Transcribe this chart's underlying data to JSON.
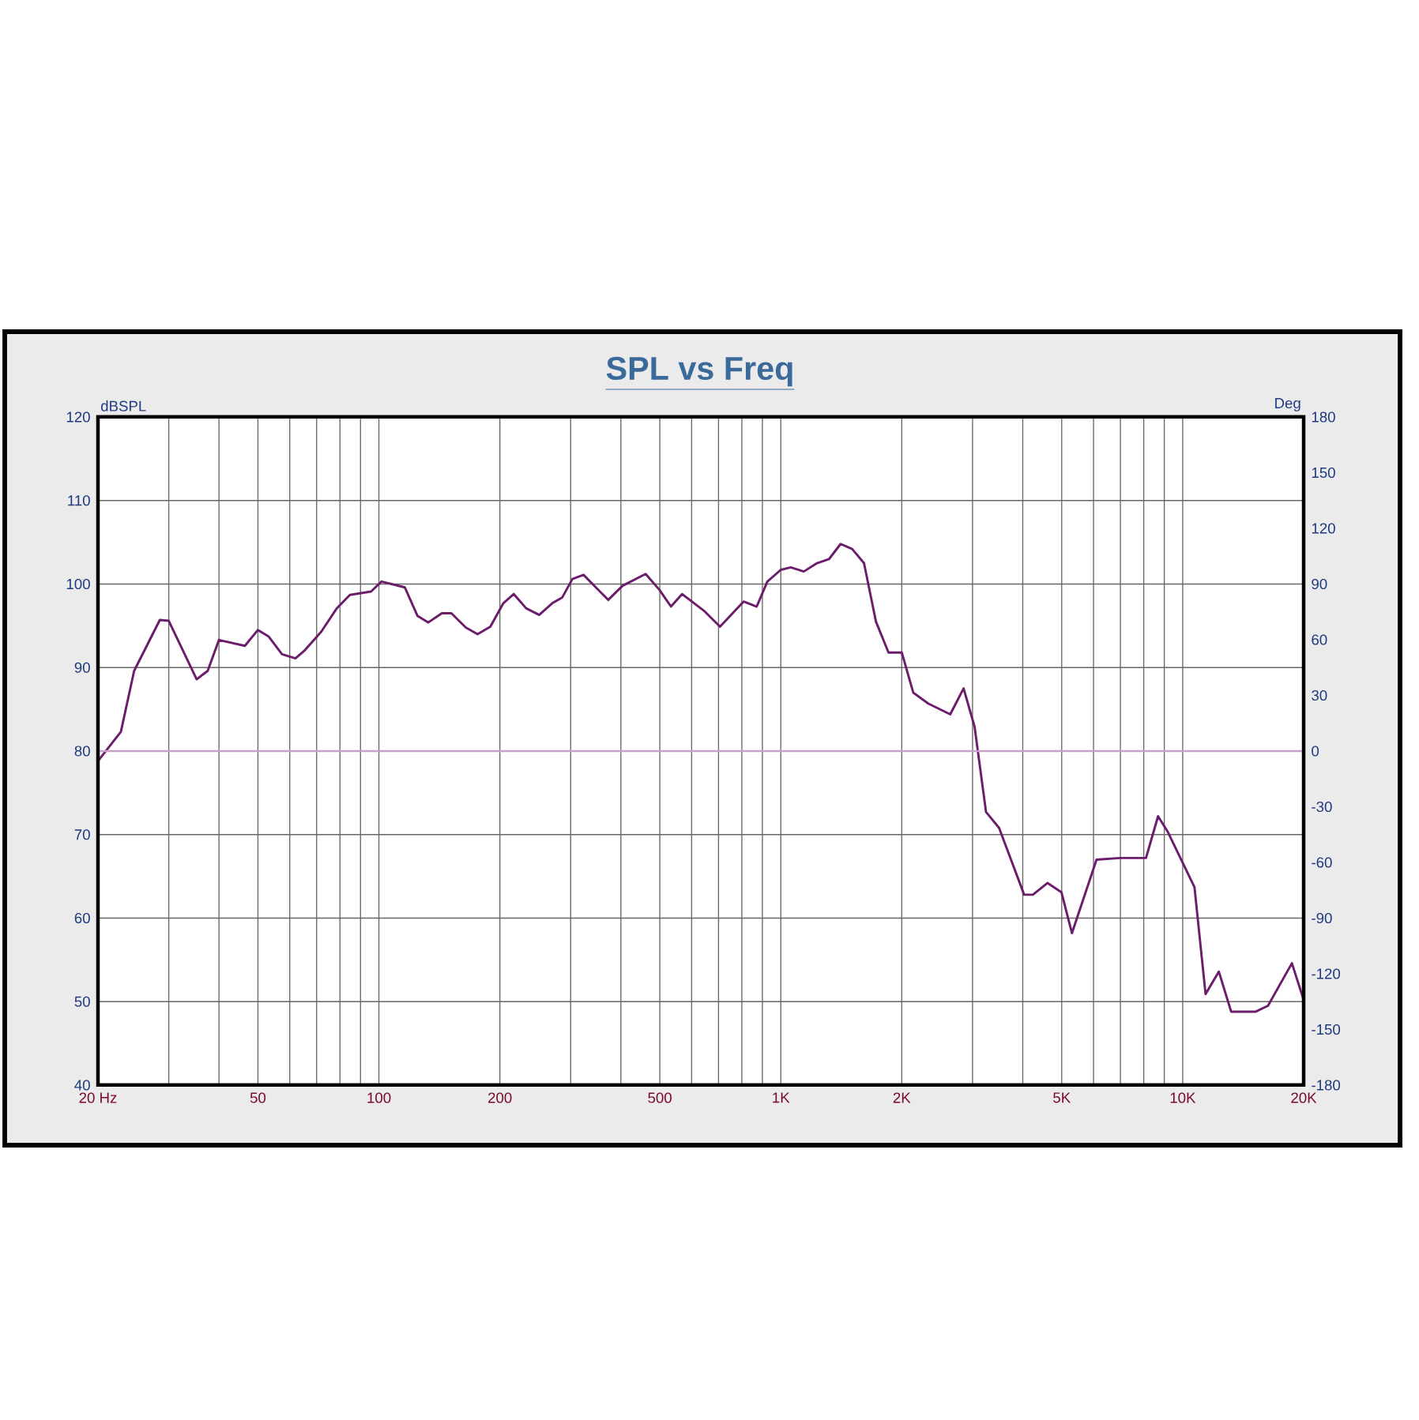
{
  "chart_data": {
    "type": "line",
    "title": "SPL vs Freq",
    "ylabel": "dBSPL",
    "y2label": "Deg",
    "log": "x",
    "grid": true,
    "marker": "none",
    "xlim": [
      20,
      20000
    ],
    "ylim": [
      40,
      120
    ],
    "y2lim": [
      -180,
      180
    ],
    "xticks": [
      {
        "value": 20,
        "label": "20 Hz"
      },
      {
        "value": 30,
        "label": null
      },
      {
        "value": 40,
        "label": null
      },
      50,
      {
        "value": 60,
        "label": null
      },
      {
        "value": 70,
        "label": null
      },
      {
        "value": 80,
        "label": null
      },
      {
        "value": 90,
        "label": null
      },
      100,
      200,
      {
        "value": 300,
        "label": null
      },
      {
        "value": 400,
        "label": null
      },
      500,
      {
        "value": 600,
        "label": null
      },
      {
        "value": 700,
        "label": null
      },
      {
        "value": 800,
        "label": null
      },
      {
        "value": 900,
        "label": null
      },
      {
        "value": 1000,
        "label": "1K"
      },
      {
        "value": 2000,
        "label": "2K"
      },
      {
        "value": 3000,
        "label": null
      },
      {
        "value": 4000,
        "label": null
      },
      {
        "value": 5000,
        "label": "5K"
      },
      {
        "value": 6000,
        "label": null
      },
      {
        "value": 7000,
        "label": null
      },
      {
        "value": 8000,
        "label": null
      },
      {
        "value": 9000,
        "label": null
      },
      {
        "value": 10000,
        "label": "10K"
      },
      {
        "value": 20000,
        "label": "20K"
      }
    ],
    "yticks": [
      40,
      50,
      60,
      70,
      80,
      90,
      100,
      110,
      120
    ],
    "y2ticks": [
      -180,
      -150,
      -120,
      -90,
      -60,
      -30,
      0,
      30,
      60,
      90,
      120,
      150,
      180
    ],
    "ref_lines": [
      {
        "axis": "y2",
        "value": 0,
        "color": "#c8a0c8"
      }
    ],
    "series": [
      {
        "color": "#6b1c6b",
        "x": [
          20,
          22.8,
          24.6,
          28.5,
          30,
          35.2,
          37.5,
          40,
          46.4,
          50,
          53.2,
          57.4,
          62,
          65.5,
          71.9,
          78.6,
          84.7,
          95.6,
          101.5,
          116,
          124.7,
          132.7,
          143.4,
          151.5,
          164.5,
          176,
          189.4,
          204,
          216.6,
          232.4,
          250.5,
          270,
          286,
          303,
          323,
          372,
          404,
          461,
          499,
          533,
          568,
          644,
          706,
          808,
          871,
          926,
          1000,
          1059,
          1141,
          1231,
          1319,
          1409,
          1505,
          1611,
          1725,
          1854,
          2000,
          2136,
          2326,
          2640,
          2850,
          3036,
          3241,
          3493,
          4032,
          4239,
          4608,
          4992,
          5303,
          6104,
          6989,
          8105,
          8684,
          9188,
          10700,
          11400,
          12300,
          13200,
          15200,
          16300,
          18700,
          20000
        ],
        "values": [
          78.8,
          82.3,
          89.6,
          95.7,
          95.6,
          88.6,
          89.6,
          93.3,
          92.6,
          94.5,
          93.7,
          91.6,
          91.1,
          92.1,
          94.3,
          97.1,
          98.7,
          99.1,
          100.3,
          99.6,
          96.2,
          95.4,
          96.5,
          96.5,
          94.8,
          94.0,
          94.9,
          97.7,
          98.8,
          97.1,
          96.3,
          97.7,
          98.4,
          100.6,
          101.1,
          98.1,
          99.8,
          101.2,
          99.3,
          97.3,
          98.8,
          96.8,
          94.9,
          97.9,
          97.3,
          100.3,
          101.7,
          102.0,
          101.5,
          102.5,
          103.0,
          104.8,
          104.2,
          102.5,
          95.5,
          91.8,
          91.8,
          87.0,
          85.7,
          84.4,
          87.5,
          82.9,
          72.7,
          70.8,
          62.8,
          62.8,
          64.2,
          63.1,
          58.2,
          67.0,
          67.2,
          67.2,
          72.2,
          70.3,
          63.7,
          50.9,
          53.6,
          48.8,
          48.8,
          49.5,
          54.6,
          50.2
        ]
      }
    ]
  }
}
